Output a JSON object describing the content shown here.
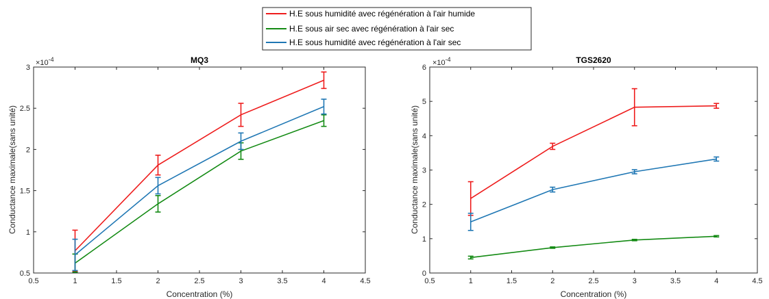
{
  "legend": {
    "entries": [
      {
        "label": "H.E sous humidité avec régénération à l'air humide",
        "color": "#ee1c1c"
      },
      {
        "label": "H.E sous air sec avec régénération à l'air sec",
        "color": "#138a13"
      },
      {
        "label": "H.E sous humidité avec régénération à l'air sec",
        "color": "#1f77b4"
      }
    ]
  },
  "chart_data": [
    {
      "type": "line",
      "title": "MQ3",
      "xlabel": "Concentration (%)",
      "ylabel": "Conductance maximale(sans unité)",
      "exponent_label": "×10^-4",
      "exponent_base": "×10",
      "exponent_power": "-4",
      "xlim": [
        0.5,
        4.5
      ],
      "ylim": [
        0.5,
        3
      ],
      "xticks": [
        0.5,
        1,
        1.5,
        2,
        2.5,
        3,
        3.5,
        4,
        4.5
      ],
      "xtick_labels": [
        "0.5",
        "1",
        "1.5",
        "2",
        "2.5",
        "3",
        "3.5",
        "4",
        "4.5"
      ],
      "yticks": [
        0.5,
        1,
        1.5,
        2,
        2.5,
        3
      ],
      "ytick_labels": [
        "0.5",
        "1",
        "1.5",
        "2",
        "2.5",
        "3"
      ],
      "x": [
        1,
        2,
        3,
        4
      ],
      "series": [
        {
          "name": "H.E sous humidité avec régénération à l'air humide",
          "color": "#ee1c1c",
          "values": [
            0.77,
            1.81,
            2.42,
            2.84
          ],
          "errors": [
            0.25,
            0.12,
            0.14,
            0.1
          ]
        },
        {
          "name": "H.E sous air sec avec régénération à l'air sec",
          "color": "#138a13",
          "values": [
            0.62,
            1.34,
            1.98,
            2.35
          ],
          "errors": [
            0.11,
            0.1,
            0.1,
            0.07
          ]
        },
        {
          "name": "H.E sous humidité avec régénération à l'air sec",
          "color": "#1f77b4",
          "values": [
            0.72,
            1.56,
            2.1,
            2.52
          ],
          "errors": [
            0.19,
            0.1,
            0.1,
            0.09
          ]
        }
      ]
    },
    {
      "type": "line",
      "title": "TGS2620",
      "xlabel": "Concentration (%)",
      "ylabel": "Conductance maximale(sans unité)",
      "exponent_label": "×10^-4",
      "exponent_base": "×10",
      "exponent_power": "-4",
      "xlim": [
        0.5,
        4.5
      ],
      "ylim": [
        0,
        6
      ],
      "xticks": [
        0.5,
        1,
        1.5,
        2,
        2.5,
        3,
        3.5,
        4,
        4.5
      ],
      "xtick_labels": [
        "0.5",
        "1",
        "1.5",
        "2",
        "2.5",
        "3",
        "3.5",
        "4",
        "4.5"
      ],
      "yticks": [
        0,
        1,
        2,
        3,
        4,
        5,
        6
      ],
      "ytick_labels": [
        "0",
        "1",
        "2",
        "3",
        "4",
        "5",
        "6"
      ],
      "x": [
        1,
        2,
        3,
        4
      ],
      "series": [
        {
          "name": "H.E sous humidité avec régénération à l'air humide",
          "color": "#ee1c1c",
          "values": [
            2.17,
            3.69,
            4.83,
            4.87
          ],
          "errors": [
            0.49,
            0.09,
            0.54,
            0.07
          ]
        },
        {
          "name": "H.E sous air sec avec régénération à l'air sec",
          "color": "#138a13",
          "values": [
            0.45,
            0.74,
            0.96,
            1.07
          ],
          "errors": [
            0.04,
            0.02,
            0.02,
            0.02
          ]
        },
        {
          "name": "H.E sous humidité avec régénération à l'air sec",
          "color": "#1f77b4",
          "values": [
            1.49,
            2.43,
            2.95,
            3.32
          ],
          "errors": [
            0.25,
            0.07,
            0.06,
            0.06
          ]
        }
      ]
    }
  ]
}
